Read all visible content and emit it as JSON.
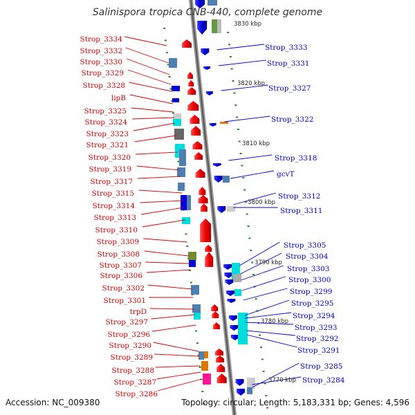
{
  "title": "Salinispora tropica CNB-440, complete genome",
  "footer": {
    "accession": "Accession: NC_009380",
    "stats": "Topology: circular; Length: 5,183,331 bp; Genes: 4,596"
  },
  "colors": {
    "forward": "#ee0000",
    "reverse": "#0000dd",
    "left_label": "#d40000",
    "right_label": "#0000cc",
    "backbone": "#888888",
    "tick": "#228b22"
  },
  "kbp_marks": [
    "3830 kbp",
    "3820 kbp",
    "3810 kbp",
    "3800 kbp",
    "3790 kbp",
    "3780 kbp",
    "3770 kbp"
  ],
  "left_labels": [
    "Strop_3334",
    "Strop_3332",
    "Strop_3330",
    "Strop_3329",
    "Strop_3328",
    "lipB",
    "Strop_3325",
    "Strop_3324",
    "Strop_3323",
    "Strop_3321",
    "Strop_3320",
    "Strop_3319",
    "Strop_3317",
    "Strop_3315",
    "Strop_3314",
    "Strop_3313",
    "Strop_3310",
    "Strop_3309",
    "Strop_3308",
    "Strop_3307",
    "Strop_3306",
    "Strop_3302",
    "Strop_3301",
    "trpD",
    "Strop_3297",
    "Strop_3296",
    "Strop_3290",
    "Strop_3289",
    "Strop_3288",
    "Strop_3287",
    "Strop_3286"
  ],
  "right_labels": [
    "Strop_3333",
    "Strop_3331",
    "Strop_3327",
    "Strop_3322",
    "Strop_3318",
    "gcvT",
    "Strop_3312",
    "Strop_3311",
    "Strop_3305",
    "Strop_3304",
    "Strop_3303",
    "Strop_3300",
    "Strop_3299",
    "Strop_3295",
    "Strop_3294",
    "Strop_3293",
    "Strop_3292",
    "Strop_3291",
    "Strop_3285",
    "Strop_3284"
  ]
}
